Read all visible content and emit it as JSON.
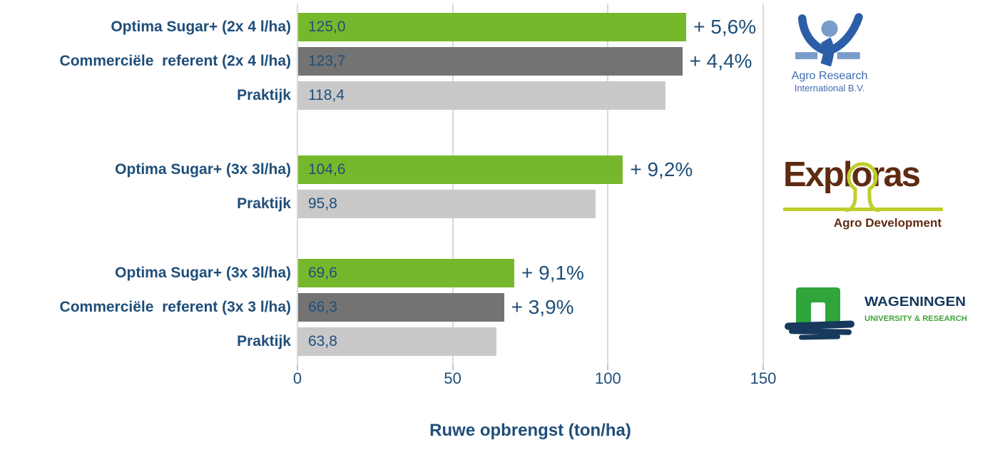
{
  "chart_data": {
    "type": "bar",
    "orientation": "horizontal",
    "xlabel": "Ruwe opbrengst (ton/ha)",
    "xlim": [
      0,
      150
    ],
    "xticks": [
      "0",
      "50",
      "100",
      "150"
    ],
    "xtick_values": [
      0,
      50,
      100,
      150
    ],
    "grid": true,
    "legend": "none",
    "text_color": "#1F4E79",
    "gridline_color": "#D9D9D9",
    "series_colors": {
      "optima_sugar": "#76B82C",
      "commercial_referent": "#737373",
      "praktijk": "#C9C9C9"
    },
    "groups": [
      {
        "rows": [
          {
            "label": "Optima Sugar+ (2x 4 l/ha)",
            "value": 125.0,
            "value_label": "125,0",
            "delta_label": "+ 5,6%",
            "series": "optima_sugar"
          },
          {
            "label": "Commerciële  referent (2x 4 l/ha)",
            "value": 123.7,
            "value_label": "123,7",
            "delta_label": "+ 4,4%",
            "series": "commercial_referent"
          },
          {
            "label": "Praktijk",
            "value": 118.4,
            "value_label": "118,4",
            "delta_label": null,
            "series": "praktijk"
          }
        ]
      },
      {
        "rows": [
          {
            "label": "Optima Sugar+ (3x 3l/ha)",
            "value": 104.6,
            "value_label": "104,6",
            "delta_label": "+ 9,2%",
            "series": "optima_sugar"
          },
          {
            "label": "Praktijk",
            "value": 95.8,
            "value_label": "95,8",
            "delta_label": null,
            "series": "praktijk"
          }
        ]
      },
      {
        "rows": [
          {
            "label": "Optima Sugar+ (3x 3l/ha)",
            "value": 69.6,
            "value_label": "69,6",
            "delta_label": "+ 9,1%",
            "series": "optima_sugar"
          },
          {
            "label": "Commerciële  referent (3x 3 l/ha)",
            "value": 66.3,
            "value_label": "66,3",
            "delta_label": "+ 3,9%",
            "series": "commercial_referent"
          },
          {
            "label": "Praktijk",
            "value": 63.8,
            "value_label": "63,8",
            "delta_label": null,
            "series": "praktijk"
          }
        ]
      }
    ]
  },
  "logos": {
    "agro_research": {
      "line1": "Agro Research",
      "line2": "International B.V.",
      "icon": "raised-arms-figure",
      "text_color": "#3E6CB0",
      "dark_blue": "#2B5EA7",
      "light_blue": "#7A9CC8"
    },
    "exploras": {
      "name": "Exploras",
      "name_part1": "Expl",
      "name_part2": "o",
      "name_part3": "ras",
      "tagline": "Agro Development",
      "text_color": "#5E2B10",
      "accent_green": "#BFCE2C"
    },
    "wageningen": {
      "line1": "WAGENINGEN",
      "line2": "UNIVERSITY & RESEARCH",
      "icon": "green-arch-over-water",
      "navy": "#16395C",
      "arch_green": "#2FA53C",
      "text_green": "#3FA435"
    }
  }
}
